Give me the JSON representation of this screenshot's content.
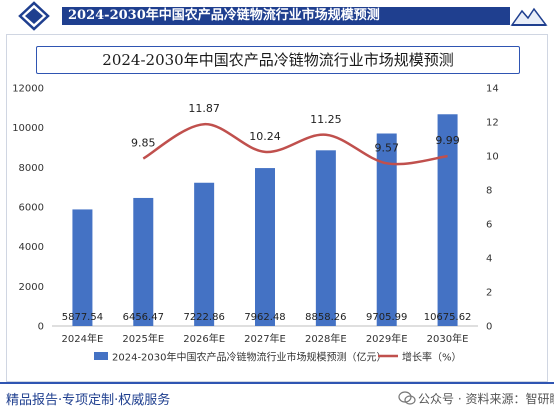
{
  "header": {
    "title": "2024-2030年中国农产品冷链物流行业市场规模预测"
  },
  "footer": {
    "tagline": "精品报告·专项定制·权威服务",
    "source": "公众号 · 资料来源：智研瞻"
  },
  "colors": {
    "bar": "#4472c4",
    "line": "#c0504d",
    "accent": "#1f3f8f"
  },
  "icons": {
    "header_left": "diamond-logo-icon",
    "header_right": "mountain-logo-icon",
    "source": "wechat-icon"
  },
  "chart_data": {
    "type": "bar",
    "title": "2024-2030年中国农产品冷链物流行业市场规模预测",
    "categories": [
      "2024年E",
      "2025年E",
      "2026年E",
      "2027年E",
      "2028年E",
      "2029年E",
      "2030年E"
    ],
    "series": [
      {
        "name": "2024-2030年中国农产品冷链物流行业市场规模预测（亿元）",
        "type": "bar",
        "axis": "left",
        "values": [
          5877.54,
          6456.47,
          7222.86,
          7962.48,
          8858.26,
          9705.99,
          10675.62
        ],
        "labels": [
          "5877.54",
          "6456.47",
          "7222.86",
          "7962.48",
          "8858.26",
          "9705.99",
          "10675.62"
        ]
      },
      {
        "name": "增长率（%）",
        "type": "line",
        "axis": "right",
        "values": [
          null,
          9.85,
          11.87,
          10.24,
          11.25,
          9.57,
          9.99
        ],
        "labels": [
          "",
          "9.85",
          "11.87",
          "10.24",
          "11.25",
          "9.57",
          "9.99"
        ]
      }
    ],
    "ylim_left": [
      0,
      12000
    ],
    "yticks_left": [
      0,
      2000,
      4000,
      6000,
      8000,
      10000,
      12000
    ],
    "ylim_right": [
      0,
      14
    ],
    "yticks_right": [
      0,
      2,
      4,
      6,
      8,
      10,
      12,
      14
    ],
    "grid": false,
    "legend": "bottom"
  }
}
